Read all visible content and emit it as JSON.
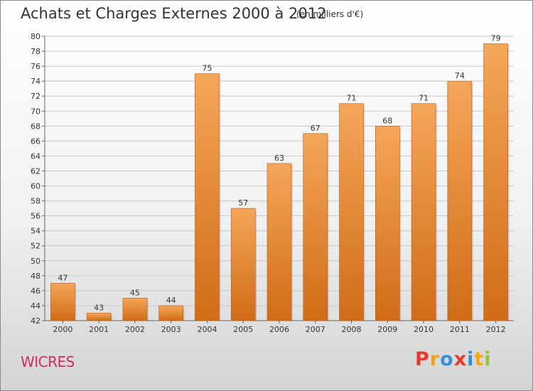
{
  "header": {
    "title": "Achats et Charges Externes 2000 à 2012",
    "subtitle": "(en milliers d'€)"
  },
  "commune_label": "WICRES",
  "logo": {
    "letters": [
      "P",
      "r",
      "o",
      "x",
      "i",
      "t",
      "i"
    ],
    "colors": [
      "#e23a2d",
      "#f6a01a",
      "#3a8fd6",
      "#e23a2d",
      "#2f8fd0",
      "#f2a81d",
      "#8cc63f"
    ]
  },
  "colors": {
    "bar_top": "#f5a65a",
    "bar_bottom": "#d06c16",
    "bar_edge": "#b85a10",
    "grid": "#c8c8c8",
    "text": "#333333"
  },
  "chart_data": {
    "type": "bar",
    "categories": [
      "2000",
      "2001",
      "2002",
      "2003",
      "2004",
      "2005",
      "2006",
      "2007",
      "2008",
      "2009",
      "2010",
      "2011",
      "2012"
    ],
    "values": [
      47,
      43,
      45,
      44,
      75,
      57,
      63,
      67,
      71,
      68,
      71,
      74,
      79
    ],
    "ylim": [
      42,
      80
    ],
    "yticks": [
      42,
      44,
      46,
      48,
      50,
      52,
      54,
      56,
      58,
      60,
      62,
      64,
      66,
      68,
      70,
      72,
      74,
      76,
      78,
      80
    ],
    "grid": true,
    "xlabel": "",
    "ylabel": ""
  }
}
